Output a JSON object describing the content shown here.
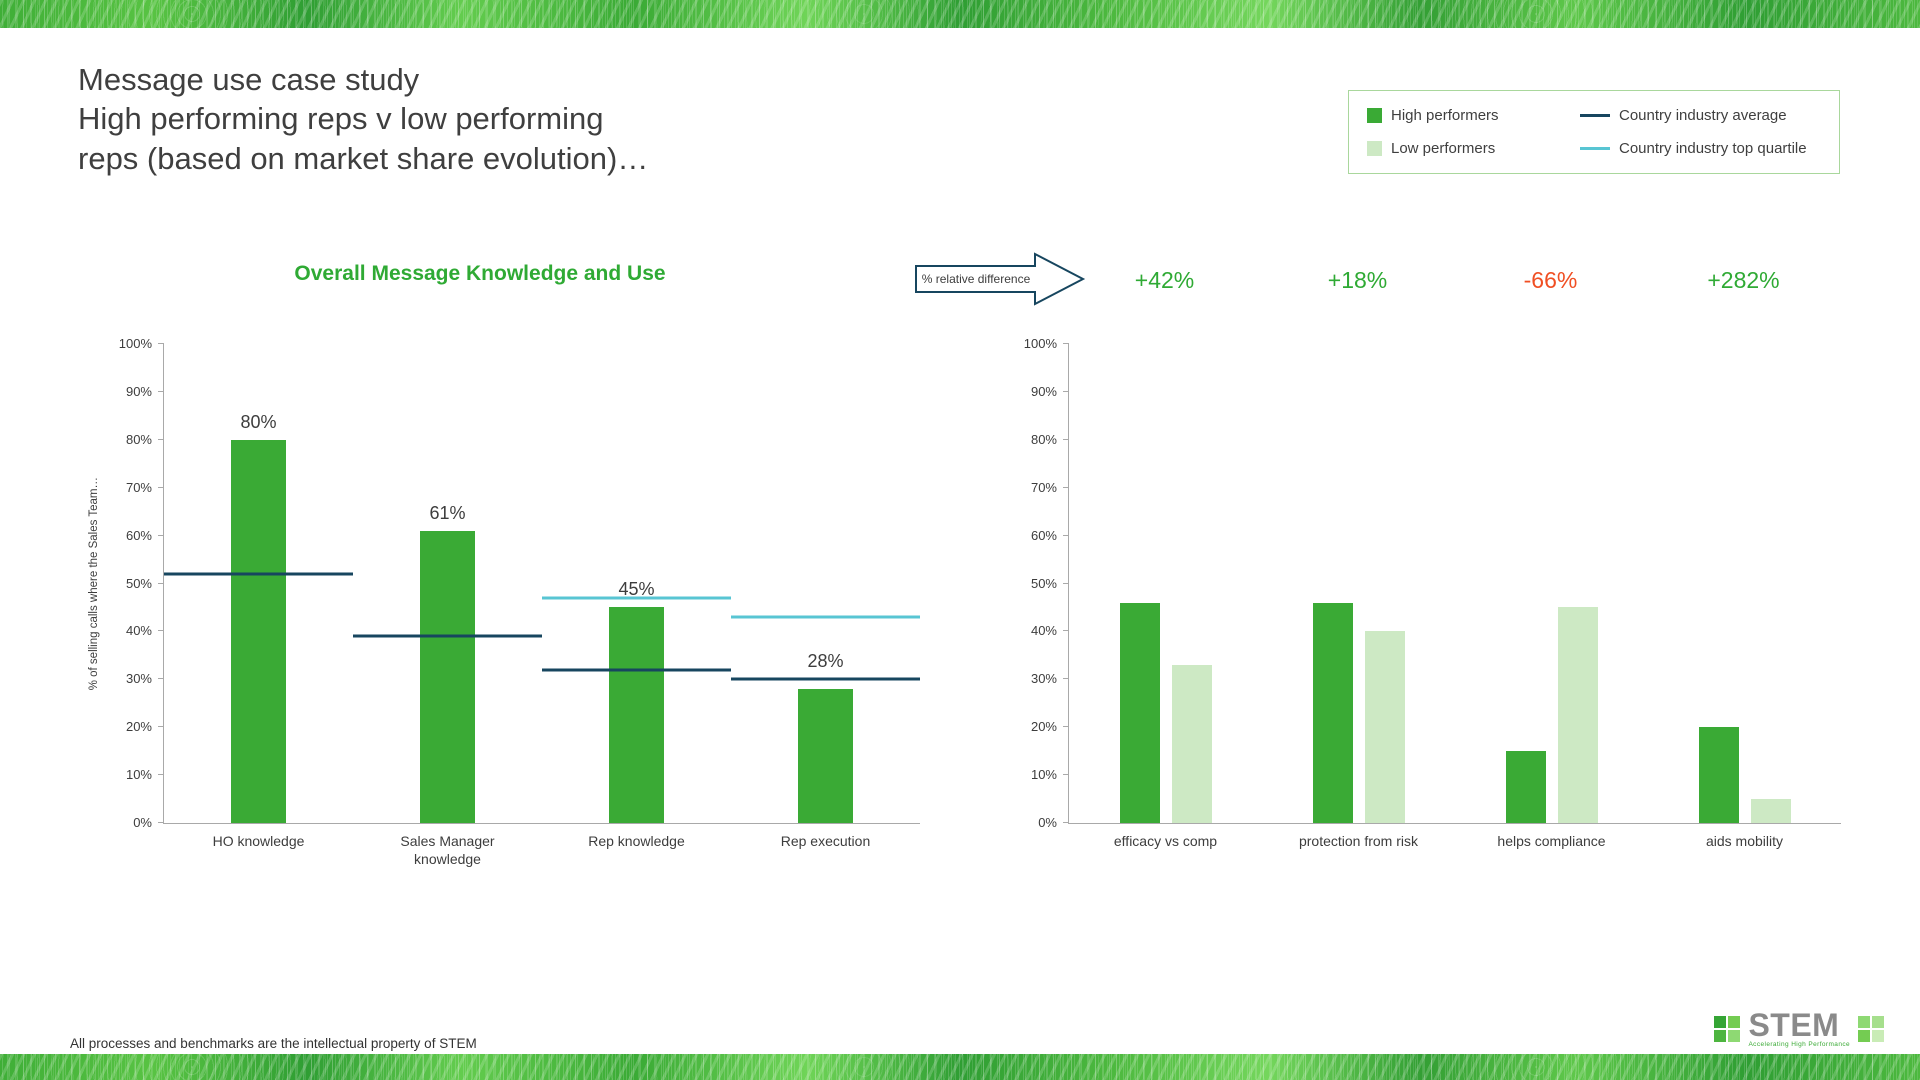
{
  "slide": {
    "title_lines": [
      "Message use case study",
      "High performing reps v low performing",
      "reps (based on market share evolution)…"
    ],
    "footer_disclaimer": "All processes and benchmarks are the intellectual property of STEM"
  },
  "legend": {
    "items": [
      {
        "label": "High performers",
        "swatch": "square",
        "color": "#3aaa35"
      },
      {
        "label": "Country industry average",
        "swatch": "line",
        "color": "#17465f"
      },
      {
        "label": "Low performers",
        "swatch": "square",
        "color": "#cde9c4"
      },
      {
        "label": "Country industry top quartile",
        "swatch": "line",
        "color": "#58c5d3"
      }
    ]
  },
  "relative_difference": {
    "arrow_label": "% relative difference",
    "values": [
      {
        "text": "+42%",
        "color": "#2faa34"
      },
      {
        "text": "+18%",
        "color": "#2faa34"
      },
      {
        "text": "-66%",
        "color": "#f04f23"
      },
      {
        "text": "+282%",
        "color": "#2faa34"
      }
    ]
  },
  "chart_data": [
    {
      "type": "bar",
      "title": "Overall Message Knowledge and Use",
      "xlabel": "",
      "ylabel": "% of selling calls where the Sales Team…",
      "ylim": [
        0,
        100
      ],
      "ytick_step": 10,
      "ytick_suffix": "%",
      "grid": false,
      "categories": [
        "HO knowledge",
        "Sales Manager knowledge",
        "Rep knowledge",
        "Rep execution"
      ],
      "series": [
        {
          "name": "High performers",
          "color": "#3aaa35",
          "values": [
            80,
            61,
            45,
            28
          ]
        }
      ],
      "bar_labels": [
        "80%",
        "61%",
        "45%",
        "28%"
      ],
      "benchmarks": [
        {
          "name": "Country industry average",
          "color": "#17465f",
          "values": [
            52,
            39,
            32,
            30
          ]
        },
        {
          "name": "Country industry top quartile",
          "color": "#58c5d3",
          "values": [
            null,
            null,
            47,
            43
          ]
        }
      ]
    },
    {
      "type": "bar",
      "title": "",
      "xlabel": "",
      "ylabel": "",
      "ylim": [
        0,
        100
      ],
      "ytick_step": 10,
      "ytick_suffix": "%",
      "grid": false,
      "categories": [
        "efficacy vs comp",
        "protection from risk",
        "helps compliance",
        "aids mobility"
      ],
      "series": [
        {
          "name": "High performers",
          "color": "#3aaa35",
          "values": [
            46,
            46,
            15,
            20
          ]
        },
        {
          "name": "Low performers",
          "color": "#cde9c4",
          "values": [
            33,
            40,
            45,
            5
          ]
        }
      ]
    }
  ],
  "logo": {
    "text": "STEM",
    "tagline": "Accelerating High Performance"
  }
}
